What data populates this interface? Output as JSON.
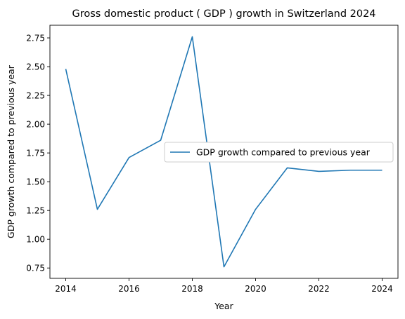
{
  "colors": {
    "series": "#1f77b4",
    "axis": "#000000",
    "legend_border": "#cccccc",
    "background": "#ffffff"
  },
  "chart_data": {
    "type": "line",
    "title": "Gross domestic product ( GDP ) growth in Switzerland 2024",
    "xlabel": "Year",
    "ylabel": "GDP growth compared to previous year",
    "x": [
      2014,
      2015,
      2016,
      2017,
      2018,
      2019,
      2020,
      2021,
      2022,
      2023,
      2024
    ],
    "series": [
      {
        "name": "GDP growth compared to previous year",
        "values": [
          2.48,
          1.26,
          1.71,
          1.86,
          2.76,
          0.76,
          1.26,
          1.62,
          1.59,
          1.6,
          1.6
        ]
      }
    ],
    "xlim": [
      2013.5,
      2024.5
    ],
    "ylim": [
      0.66,
      2.86
    ],
    "xticks": [
      2014,
      2016,
      2018,
      2020,
      2022,
      2024
    ],
    "xtick_labels": [
      "2014",
      "2016",
      "2018",
      "2020",
      "2022",
      "2024"
    ],
    "yticks": [
      0.75,
      1.0,
      1.25,
      1.5,
      1.75,
      2.0,
      2.25,
      2.5,
      2.75
    ],
    "ytick_labels": [
      "0.75",
      "1.00",
      "1.25",
      "1.50",
      "1.75",
      "2.00",
      "2.25",
      "2.50",
      "2.75"
    ],
    "grid": false,
    "legend_position": "center-right"
  }
}
